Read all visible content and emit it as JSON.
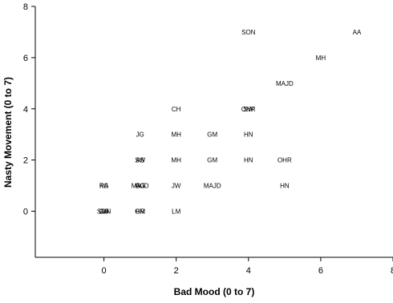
{
  "chart_data": {
    "type": "scatter",
    "title": "",
    "xlabel": "Bad Mood (0 to 7)",
    "ylabel": "Nasty Movement (0 to 7)",
    "xlim": [
      -1.9,
      8
    ],
    "ylim": [
      -1.8,
      8
    ],
    "xticks": [
      0,
      2,
      4,
      6,
      8
    ],
    "yticks": [
      0,
      2,
      4,
      6,
      8
    ],
    "grid": false,
    "points": [
      {
        "x": 0,
        "y": 0,
        "label": "SON"
      },
      {
        "x": 0,
        "y": 0,
        "label": "JW"
      },
      {
        "x": 0,
        "y": 0,
        "label": "GG"
      },
      {
        "x": 0,
        "y": 1,
        "label": "KG"
      },
      {
        "x": 0,
        "y": 1,
        "label": "RA"
      },
      {
        "x": 1,
        "y": 0,
        "label": "GM"
      },
      {
        "x": 1,
        "y": 0,
        "label": "HR"
      },
      {
        "x": 1,
        "y": 1,
        "label": "MAJD"
      },
      {
        "x": 1,
        "y": 1,
        "label": "GG"
      },
      {
        "x": 1,
        "y": 1,
        "label": "AG"
      },
      {
        "x": 1,
        "y": 2,
        "label": "SW"
      },
      {
        "x": 1,
        "y": 2,
        "label": "AS"
      },
      {
        "x": 1,
        "y": 3,
        "label": "JG"
      },
      {
        "x": 2,
        "y": 0,
        "label": "LM"
      },
      {
        "x": 2,
        "y": 1,
        "label": "JW"
      },
      {
        "x": 2,
        "y": 2,
        "label": "MH"
      },
      {
        "x": 2,
        "y": 3,
        "label": "MH"
      },
      {
        "x": 2,
        "y": 4,
        "label": "CH"
      },
      {
        "x": 3,
        "y": 1,
        "label": "MAJD"
      },
      {
        "x": 3,
        "y": 2,
        "label": "GM"
      },
      {
        "x": 3,
        "y": 3,
        "label": "GM"
      },
      {
        "x": 4,
        "y": 2,
        "label": "HN"
      },
      {
        "x": 4,
        "y": 3,
        "label": "HN"
      },
      {
        "x": 4,
        "y": 4,
        "label": "OHR"
      },
      {
        "x": 4,
        "y": 4,
        "label": "SW"
      },
      {
        "x": 4,
        "y": 7,
        "label": "SON"
      },
      {
        "x": 5,
        "y": 1,
        "label": "HN"
      },
      {
        "x": 5,
        "y": 2,
        "label": "OHR"
      },
      {
        "x": 5,
        "y": 5,
        "label": "MAJD"
      },
      {
        "x": 6,
        "y": 6,
        "label": "MH"
      },
      {
        "x": 7,
        "y": 7,
        "label": "AA"
      }
    ]
  }
}
